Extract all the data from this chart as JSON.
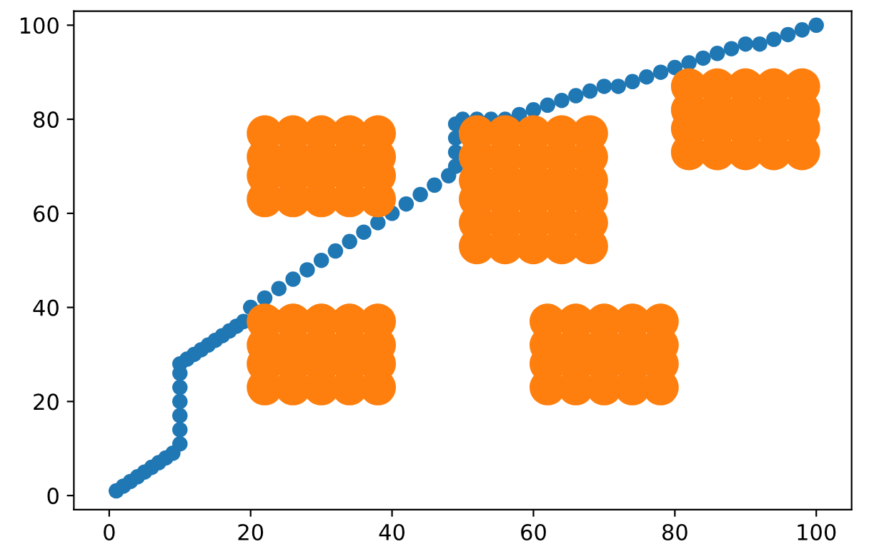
{
  "chart_data": {
    "type": "scatter",
    "marker": "circle",
    "grid": false,
    "xlim": [
      -5,
      105
    ],
    "ylim": [
      -3,
      103
    ],
    "xticks": [
      0,
      20,
      40,
      60,
      80,
      100
    ],
    "yticks": [
      0,
      20,
      40,
      60,
      80,
      100
    ],
    "series": [
      {
        "color": "#1f77b4",
        "x": [
          1,
          2,
          3,
          4,
          5,
          6,
          7,
          8,
          9,
          10,
          10,
          10,
          10,
          10,
          10,
          10,
          11,
          12,
          13,
          14,
          15,
          16,
          17,
          18,
          19,
          20,
          22,
          24,
          26,
          28,
          30,
          32,
          34,
          36,
          38,
          40,
          42,
          44,
          46,
          48,
          49,
          49,
          49,
          49,
          50,
          52,
          54,
          56,
          58,
          60,
          62,
          64,
          66,
          68,
          70,
          72,
          74,
          76,
          78,
          80,
          82,
          84,
          86,
          88,
          90,
          92,
          94,
          96,
          98,
          100
        ],
        "values": [
          1,
          2,
          3,
          4,
          5,
          6,
          7,
          8,
          9,
          11,
          14,
          17,
          20,
          23,
          26,
          28,
          29,
          30,
          31,
          32,
          33,
          34,
          35,
          36,
          37,
          40,
          42,
          44,
          46,
          48,
          50,
          52,
          54,
          56,
          58,
          60,
          62,
          64,
          66,
          68,
          70,
          73,
          76,
          79,
          80,
          80,
          80,
          80,
          81,
          82,
          83,
          84,
          85,
          86,
          87,
          87,
          88,
          89,
          90,
          91,
          92,
          93,
          94,
          95,
          96,
          96,
          97,
          98,
          99,
          100
        ]
      },
      {
        "color": "#ff7f0e",
        "x": [
          22,
          26,
          30,
          34,
          38,
          22,
          26,
          30,
          34,
          38,
          22,
          26,
          30,
          34,
          38,
          22,
          26,
          30,
          34,
          38,
          22,
          26,
          30,
          34,
          38,
          22,
          26,
          30,
          34,
          38,
          22,
          26,
          30,
          34,
          38,
          22,
          26,
          30,
          34,
          38,
          52,
          56,
          60,
          64,
          68,
          52,
          56,
          60,
          64,
          68,
          52,
          56,
          60,
          64,
          68,
          52,
          56,
          60,
          64,
          68,
          52,
          56,
          60,
          64,
          68,
          52,
          56,
          60,
          64,
          68,
          62,
          66,
          70,
          74,
          78,
          62,
          66,
          70,
          74,
          78,
          62,
          66,
          70,
          74,
          78,
          62,
          66,
          70,
          74,
          78,
          82,
          86,
          90,
          94,
          98,
          82,
          86,
          90,
          94,
          98,
          82,
          86,
          90,
          94,
          98,
          82,
          86,
          90,
          94,
          98
        ],
        "values": [
          63,
          63,
          63,
          63,
          63,
          68,
          68,
          68,
          68,
          68,
          72,
          72,
          72,
          72,
          72,
          77,
          77,
          77,
          77,
          77,
          23,
          23,
          23,
          23,
          23,
          28,
          28,
          28,
          28,
          28,
          32,
          32,
          32,
          32,
          32,
          37,
          37,
          37,
          37,
          37,
          53,
          53,
          53,
          53,
          53,
          58,
          58,
          58,
          58,
          58,
          63,
          63,
          63,
          63,
          63,
          67,
          67,
          67,
          67,
          67,
          72,
          72,
          72,
          72,
          72,
          77,
          77,
          77,
          77,
          77,
          23,
          23,
          23,
          23,
          23,
          28,
          28,
          28,
          28,
          28,
          32,
          32,
          32,
          32,
          32,
          37,
          37,
          37,
          37,
          37,
          73,
          73,
          73,
          73,
          73,
          78,
          78,
          78,
          78,
          78,
          82,
          82,
          82,
          82,
          82,
          87,
          87,
          87,
          87,
          87
        ]
      }
    ]
  }
}
